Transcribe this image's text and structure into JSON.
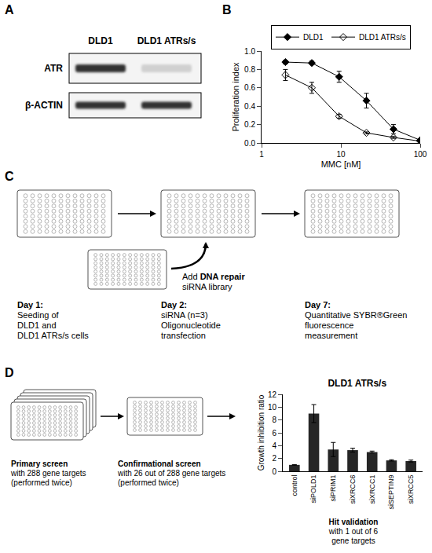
{
  "panels": {
    "labels": [
      "A",
      "B",
      "C",
      "D"
    ]
  },
  "blot": {
    "lanes": [
      "DLD1",
      "DLD1 ATRs/s"
    ],
    "rows": [
      "ATR",
      "β-ACTIN"
    ]
  },
  "chart_data": [
    {
      "type": "line",
      "xlabel": "MMC [nM]",
      "ylabel": "Proliferation index",
      "log": "x",
      "x": [
        2,
        4.3,
        9.5,
        21,
        46,
        100
      ],
      "xlim": [
        1,
        100
      ],
      "xticks": [
        1,
        10,
        100
      ],
      "ylim": [
        0,
        1
      ],
      "yticks": [
        {
          "value": 0,
          "label": "0.0"
        },
        0.2,
        0.4,
        0.6,
        0.8,
        {
          "value": 1,
          "label": "1.0"
        }
      ],
      "legend": "top",
      "grid": false,
      "series": [
        {
          "name": "DLD1",
          "color": "#000000",
          "marker": "diamond",
          "values": [
            0.88,
            0.87,
            0.72,
            0.46,
            0.15,
            0.03
          ],
          "errors": [
            0.02,
            0.02,
            0.06,
            0.08,
            0.05,
            0.01
          ]
        },
        {
          "name": "DLD1 ATRs/s",
          "color": "#000000",
          "marker": "diamond-open",
          "values": [
            0.74,
            0.6,
            0.29,
            0.11,
            0.06,
            0.02
          ],
          "errors": [
            0.06,
            0.06,
            0.02,
            0.01,
            0.01,
            0.01
          ]
        }
      ]
    },
    {
      "type": "bar",
      "title": "DLD1 ATRs/s",
      "ylabel": "Growth inhibition ratio",
      "categories": [
        "control",
        "siPOLD1",
        "siPRIM1",
        "siXRCC6",
        "siXRCC1",
        "siSEPTIN9",
        "siXRCC5"
      ],
      "values": [
        1,
        9,
        3.4,
        3.3,
        3.0,
        1.7,
        1.6
      ],
      "errors": [
        0.05,
        1.4,
        1.1,
        0.3,
        0.15,
        0.1,
        0.15
      ],
      "color": "#262626",
      "ylim": [
        0,
        12
      ],
      "yticks": [
        0,
        2,
        4,
        6,
        8,
        10,
        12
      ],
      "grid": false
    }
  ],
  "workflow": {
    "steps": [
      {
        "lines": [
          "Day 1:",
          "Seeding of",
          "DLD1 and",
          "DLD1 ATRs/s cells"
        ]
      },
      {
        "lines": [
          "Day 2:",
          "siRNA (n=3)",
          "Oligonucleotide",
          "transfection"
        ]
      },
      {
        "lines": [
          "Day 7:",
          "Quantitative SYBR®Green",
          "fluorescence",
          "measurement"
        ]
      }
    ],
    "library": {
      "lines": [
        "Add DNA repair",
        "siRNA library"
      ],
      "bold": "DNA repair"
    }
  },
  "screen": {
    "steps": [
      {
        "lines": [
          "Primary screen",
          "with 288 gene targets",
          "(performed twice)"
        ]
      },
      {
        "lines": [
          "Confirmational screen",
          "with 26 out of 288 gene targets",
          "(performed twice)"
        ]
      },
      {
        "lines": [
          "Hit validation",
          "with 1 out of 6",
          "gene targets"
        ]
      }
    ]
  }
}
